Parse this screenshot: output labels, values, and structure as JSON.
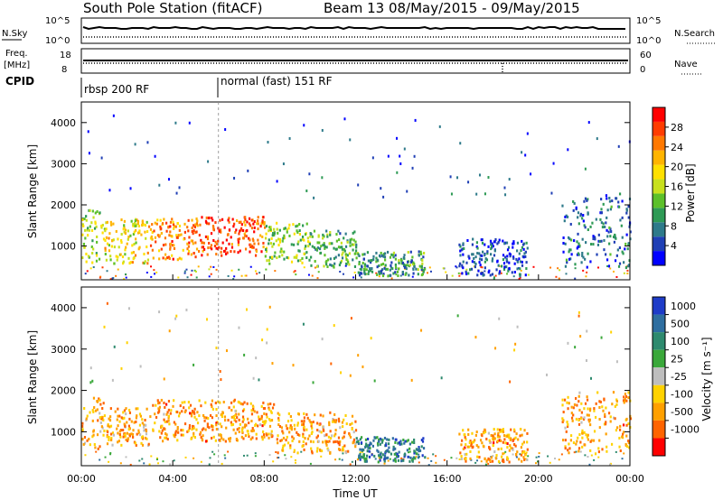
{
  "title": "South Pole Station (fitACF)",
  "beam_label": "Beam 13 08/May/2015 - 09/May/2015",
  "top_panels": {
    "nsky_label": "N.Sky",
    "nsearch_label": "N.Search",
    "nsky_ticks": [
      "10^5",
      "10^0"
    ],
    "nsearch_ticks": [
      "10^5",
      "10^0"
    ],
    "freq_label_1": "Freq.",
    "freq_label_2": "[MHz]",
    "freq_ticks": [
      "18",
      "8"
    ],
    "nave_label": "Nave",
    "nave_ticks": [
      "60",
      "0"
    ],
    "cpid_label": "CPID",
    "cpid_segments": [
      {
        "label": "rbsp 200 RF",
        "start_hour": 0
      },
      {
        "label": "normal (fast) 151 RF",
        "start_hour": 6
      }
    ]
  },
  "chart_data": [
    {
      "type": "heatmap",
      "panel": "power",
      "ylabel": "Slant Range [km]",
      "ylim": [
        180,
        4500
      ],
      "yticks": [
        1000,
        2000,
        3000,
        4000
      ],
      "xlim": [
        0,
        24
      ],
      "xticks": [
        "00:00",
        "04:00",
        "08:00",
        "12:00",
        "16:00",
        "20:00",
        "00:00"
      ],
      "colorbar": {
        "label": "Power [dB]",
        "ticks": [
          "4",
          "8",
          "12",
          "16",
          "20",
          "24",
          "28"
        ],
        "colors": [
          "#0000ff",
          "#1f3fb5",
          "#2e7a8a",
          "#2e9a55",
          "#5cc02a",
          "#c8e01e",
          "#ffe000",
          "#ffb400",
          "#ff7800",
          "#ff3c00",
          "#ff0000"
        ]
      },
      "regions": [
        {
          "t0": 0.0,
          "t1": 1.0,
          "r0": 600,
          "r1": 1900,
          "level": 0.45
        },
        {
          "t0": 1.0,
          "t1": 3.0,
          "r0": 600,
          "r1": 1700,
          "level": 0.6
        },
        {
          "t0": 3.0,
          "t1": 5.0,
          "r0": 700,
          "r1": 1700,
          "level": 0.75
        },
        {
          "t0": 5.0,
          "t1": 8.0,
          "r0": 800,
          "r1": 1750,
          "level": 0.85
        },
        {
          "t0": 8.0,
          "t1": 10.0,
          "r0": 600,
          "r1": 1600,
          "level": 0.45
        },
        {
          "t0": 10.0,
          "t1": 12.0,
          "r0": 500,
          "r1": 1400,
          "level": 0.35
        },
        {
          "t0": 12.0,
          "t1": 15.0,
          "r0": 300,
          "r1": 900,
          "level": 0.3
        },
        {
          "t0": 16.5,
          "t1": 19.5,
          "r0": 300,
          "r1": 1200,
          "level": 0.15
        },
        {
          "t0": 21.0,
          "t1": 24.0,
          "r0": 500,
          "r1": 2300,
          "level": 0.2
        }
      ]
    },
    {
      "type": "heatmap",
      "panel": "velocity",
      "ylabel": "Slant Range [km]",
      "ylim": [
        180,
        4500
      ],
      "yticks": [
        1000,
        2000,
        3000,
        4000
      ],
      "xlim": [
        0,
        24
      ],
      "xticks": [
        "00:00",
        "04:00",
        "08:00",
        "12:00",
        "16:00",
        "20:00",
        "00:00"
      ],
      "xlabel": "Time UT",
      "colorbar": {
        "label": "Velocity [m s⁻¹]",
        "ticks": [
          "1000",
          "500",
          "100",
          "25",
          "-25",
          "-100",
          "-500",
          "-1000"
        ],
        "colors": [
          "#1e3cc8",
          "#2e6ea0",
          "#2e8a6e",
          "#3aa83a",
          "#bebebe",
          "#ffd200",
          "#ffa000",
          "#ff6400",
          "#ff0000"
        ]
      },
      "regions": [
        {
          "t0": 0.0,
          "t1": 1.0,
          "r0": 600,
          "r1": 1900,
          "level": 0.7
        },
        {
          "t0": 1.0,
          "t1": 3.0,
          "r0": 700,
          "r1": 1600,
          "level": 0.7
        },
        {
          "t0": 3.0,
          "t1": 8.5,
          "r0": 800,
          "r1": 1800,
          "level": 0.72
        },
        {
          "t0": 8.5,
          "t1": 12.0,
          "r0": 500,
          "r1": 1500,
          "level": 0.72
        },
        {
          "t0": 12.0,
          "t1": 15.0,
          "r0": 300,
          "r1": 900,
          "level": 0.22
        },
        {
          "t0": 16.5,
          "t1": 19.5,
          "r0": 300,
          "r1": 1100,
          "level": 0.72
        },
        {
          "t0": 21.0,
          "t1": 24.0,
          "r0": 500,
          "r1": 2000,
          "level": 0.72
        }
      ]
    }
  ]
}
